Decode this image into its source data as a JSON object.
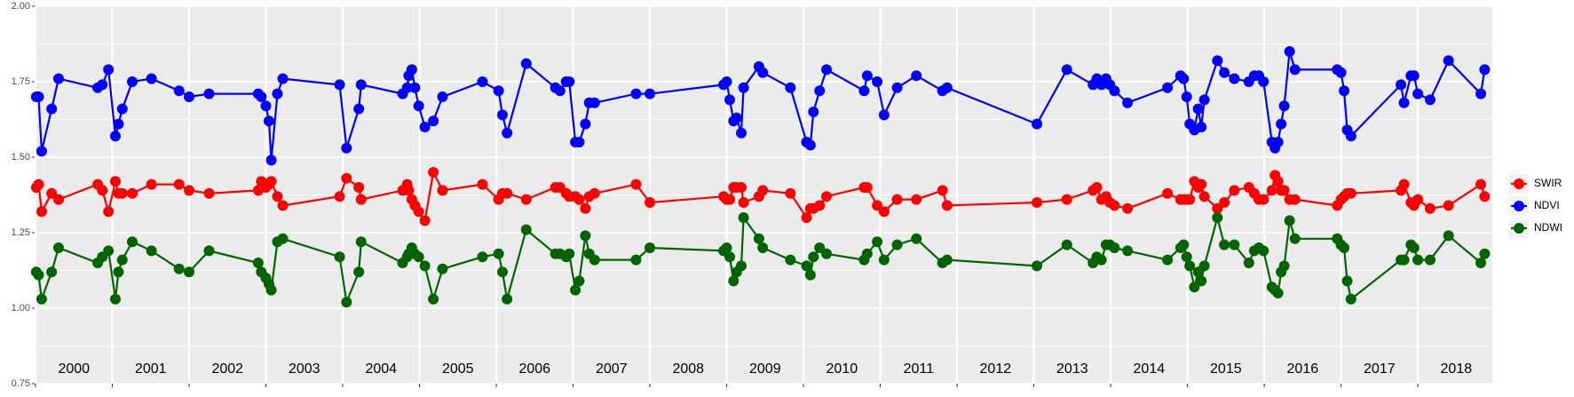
{
  "chart_data": {
    "type": "line",
    "x": [
      2000.01,
      2000.04,
      2000.08,
      2000.21,
      2000.3,
      2000.81,
      2000.87,
      2000.95,
      2001.04,
      2001.08,
      2001.13,
      2001.26,
      2001.51,
      2001.87,
      2002.0,
      2002.26,
      2002.9,
      2002.94,
      2003.0,
      2003.04,
      2003.07,
      2003.15,
      2003.22,
      2003.96,
      2004.05,
      2004.21,
      2004.24,
      2004.78,
      2004.84,
      2004.86,
      2004.9,
      2004.94,
      2004.99,
      2005.07,
      2005.18,
      2005.3,
      2005.82,
      2006.03,
      2006.08,
      2006.14,
      2006.39,
      2006.77,
      2006.83,
      2006.91,
      2006.95,
      2007.03,
      2007.08,
      2007.16,
      2007.21,
      2007.28,
      2007.82,
      2008.0,
      2008.96,
      2009.0,
      2009.04,
      2009.09,
      2009.13,
      2009.19,
      2009.22,
      2009.42,
      2009.47,
      2009.83,
      2010.04,
      2010.09,
      2010.13,
      2010.21,
      2010.3,
      2010.79,
      2010.83,
      2010.96,
      2011.05,
      2011.22,
      2011.47,
      2011.81,
      2011.87,
      2013.04,
      2013.43,
      2013.77,
      2013.82,
      2013.88,
      2013.94,
      2013.99,
      2014.05,
      2014.22,
      2014.74,
      2014.91,
      2014.95,
      2014.99,
      2015.03,
      2015.09,
      2015.14,
      2015.18,
      2015.22,
      2015.39,
      2015.48,
      2015.61,
      2015.8,
      2015.87,
      2015.93,
      2015.99,
      2016.1,
      2016.14,
      2016.18,
      2016.22,
      2016.26,
      2016.33,
      2016.4,
      2016.95,
      2017.0,
      2017.04,
      2017.08,
      2017.13,
      2017.78,
      2017.82,
      2017.91,
      2017.95,
      2018.0,
      2018.16,
      2018.4,
      2018.82,
      2018.87
    ],
    "series": [
      {
        "name": "SWIR",
        "color": "#ff0000",
        "values": [
          1.4,
          1.41,
          1.32,
          1.38,
          1.36,
          1.41,
          1.39,
          1.32,
          1.42,
          1.38,
          1.38,
          1.38,
          1.41,
          1.41,
          1.39,
          1.38,
          1.39,
          1.42,
          1.4,
          1.41,
          1.42,
          1.37,
          1.34,
          1.37,
          1.43,
          1.4,
          1.36,
          1.39,
          1.41,
          1.39,
          1.36,
          1.34,
          1.32,
          1.29,
          1.45,
          1.39,
          1.41,
          1.36,
          1.38,
          1.38,
          1.36,
          1.4,
          1.4,
          1.38,
          1.37,
          1.37,
          1.36,
          1.33,
          1.37,
          1.38,
          1.41,
          1.35,
          1.37,
          1.36,
          1.36,
          1.4,
          1.4,
          1.4,
          1.35,
          1.37,
          1.39,
          1.38,
          1.3,
          1.33,
          1.33,
          1.34,
          1.37,
          1.4,
          1.4,
          1.34,
          1.32,
          1.36,
          1.36,
          1.39,
          1.34,
          1.35,
          1.36,
          1.39,
          1.4,
          1.36,
          1.37,
          1.35,
          1.34,
          1.33,
          1.38,
          1.36,
          1.36,
          1.36,
          1.36,
          1.42,
          1.4,
          1.41,
          1.37,
          1.33,
          1.35,
          1.39,
          1.4,
          1.38,
          1.36,
          1.36,
          1.39,
          1.44,
          1.42,
          1.39,
          1.39,
          1.36,
          1.36,
          1.34,
          1.36,
          1.37,
          1.38,
          1.38,
          1.39,
          1.41,
          1.35,
          1.34,
          1.36,
          1.33,
          1.34,
          1.41,
          1.37
        ]
      },
      {
        "name": "NDVI",
        "color": "#0000ff",
        "values": [
          1.7,
          1.7,
          1.52,
          1.66,
          1.76,
          1.73,
          1.74,
          1.79,
          1.57,
          1.61,
          1.66,
          1.75,
          1.76,
          1.72,
          1.7,
          1.71,
          1.71,
          1.7,
          1.67,
          1.62,
          1.49,
          1.71,
          1.76,
          1.74,
          1.53,
          1.66,
          1.74,
          1.71,
          1.73,
          1.77,
          1.79,
          1.73,
          1.67,
          1.6,
          1.62,
          1.7,
          1.75,
          1.72,
          1.64,
          1.58,
          1.81,
          1.73,
          1.72,
          1.75,
          1.75,
          1.55,
          1.55,
          1.61,
          1.68,
          1.68,
          1.71,
          1.71,
          1.74,
          1.75,
          1.69,
          1.62,
          1.63,
          1.58,
          1.73,
          1.8,
          1.78,
          1.73,
          1.55,
          1.54,
          1.65,
          1.72,
          1.79,
          1.72,
          1.77,
          1.75,
          1.64,
          1.73,
          1.77,
          1.72,
          1.73,
          1.61,
          1.79,
          1.74,
          1.76,
          1.74,
          1.76,
          1.74,
          1.72,
          1.68,
          1.73,
          1.77,
          1.76,
          1.7,
          1.61,
          1.59,
          1.66,
          1.6,
          1.69,
          1.82,
          1.78,
          1.76,
          1.75,
          1.77,
          1.77,
          1.75,
          1.55,
          1.53,
          1.55,
          1.61,
          1.67,
          1.85,
          1.79,
          1.79,
          1.78,
          1.72,
          1.59,
          1.57,
          1.74,
          1.68,
          1.77,
          1.77,
          1.71,
          1.69,
          1.82,
          1.71,
          1.79
        ]
      },
      {
        "name": "NDWI",
        "color": "#006400",
        "values": [
          1.12,
          1.11,
          1.03,
          1.12,
          1.2,
          1.15,
          1.17,
          1.19,
          1.03,
          1.12,
          1.16,
          1.22,
          1.19,
          1.13,
          1.12,
          1.19,
          1.15,
          1.12,
          1.1,
          1.08,
          1.06,
          1.22,
          1.23,
          1.17,
          1.02,
          1.12,
          1.22,
          1.15,
          1.17,
          1.18,
          1.2,
          1.18,
          1.17,
          1.14,
          1.03,
          1.13,
          1.17,
          1.18,
          1.12,
          1.03,
          1.26,
          1.18,
          1.18,
          1.17,
          1.18,
          1.06,
          1.09,
          1.24,
          1.18,
          1.16,
          1.16,
          1.2,
          1.19,
          1.2,
          1.17,
          1.09,
          1.12,
          1.14,
          1.3,
          1.23,
          1.2,
          1.16,
          1.14,
          1.11,
          1.17,
          1.2,
          1.18,
          1.16,
          1.18,
          1.22,
          1.16,
          1.21,
          1.23,
          1.15,
          1.16,
          1.14,
          1.21,
          1.15,
          1.17,
          1.16,
          1.21,
          1.21,
          1.2,
          1.19,
          1.16,
          1.2,
          1.21,
          1.17,
          1.14,
          1.07,
          1.12,
          1.09,
          1.14,
          1.3,
          1.21,
          1.21,
          1.15,
          1.19,
          1.2,
          1.19,
          1.07,
          1.06,
          1.05,
          1.12,
          1.14,
          1.29,
          1.23,
          1.23,
          1.21,
          1.2,
          1.09,
          1.03,
          1.16,
          1.16,
          1.21,
          1.2,
          1.16,
          1.16,
          1.24,
          1.15,
          1.18
        ]
      }
    ],
    "xlim": [
      2000,
      2018.97
    ],
    "xgrid": [
      2000,
      2001,
      2002,
      2003,
      2004,
      2005,
      2006,
      2007,
      2008,
      2009,
      2010,
      2011,
      2012,
      2013,
      2014,
      2015,
      2016,
      2017,
      2018
    ],
    "year_labels": [
      {
        "value": 2000.5,
        "label": "2000"
      },
      {
        "value": 2001.5,
        "label": "2001"
      },
      {
        "value": 2002.5,
        "label": "2002"
      },
      {
        "value": 2003.5,
        "label": "2003"
      },
      {
        "value": 2004.5,
        "label": "2004"
      },
      {
        "value": 2005.5,
        "label": "2005"
      },
      {
        "value": 2006.5,
        "label": "2006"
      },
      {
        "value": 2007.5,
        "label": "2007"
      },
      {
        "value": 2008.5,
        "label": "2008"
      },
      {
        "value": 2009.5,
        "label": "2009"
      },
      {
        "value": 2010.5,
        "label": "2010"
      },
      {
        "value": 2011.5,
        "label": "2011"
      },
      {
        "value": 2012.5,
        "label": "2012"
      },
      {
        "value": 2013.5,
        "label": "2013"
      },
      {
        "value": 2014.5,
        "label": "2014"
      },
      {
        "value": 2015.5,
        "label": "2015"
      },
      {
        "value": 2016.5,
        "label": "2016"
      },
      {
        "value": 2017.5,
        "label": "2017"
      },
      {
        "value": 2018.5,
        "label": "2018"
      }
    ],
    "ylim": [
      0.75,
      2.0
    ],
    "yticks": [
      {
        "value": 0.75,
        "label": "0.75"
      },
      {
        "value": 1.0,
        "label": "1.00"
      },
      {
        "value": 1.25,
        "label": "1.25"
      },
      {
        "value": 1.5,
        "label": "1.50"
      },
      {
        "value": 1.75,
        "label": "1.75"
      },
      {
        "value": 2.0,
        "label": "2.00"
      }
    ],
    "yminor": [
      0.875,
      1.125,
      1.375,
      1.625,
      1.875
    ],
    "grid": true,
    "legend": "right"
  }
}
